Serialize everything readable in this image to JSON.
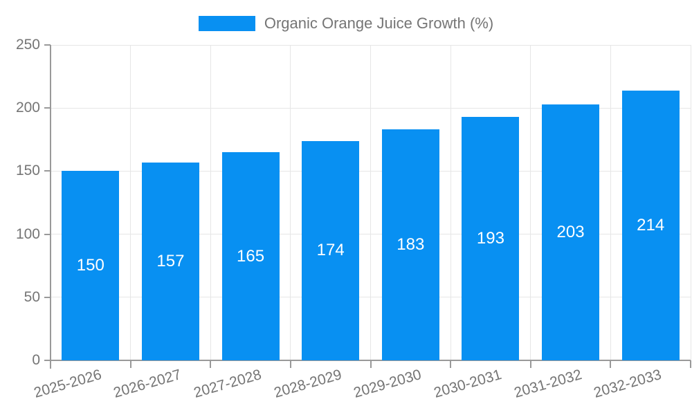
{
  "legend": {
    "label": "Organic Orange Juice Growth (%)"
  },
  "chart_data": {
    "type": "bar",
    "title": "Organic Orange Juice Growth (%)",
    "categories": [
      "2025-2026",
      "2026-2027",
      "2027-2028",
      "2028-2029",
      "2029-2030",
      "2030-2031",
      "2031-2032",
      "2032-2033"
    ],
    "values": [
      150,
      157,
      165,
      174,
      183,
      193,
      203,
      214
    ],
    "xlabel": "",
    "ylabel": "",
    "ylim": [
      0,
      250
    ],
    "yticks": [
      0,
      50,
      100,
      150,
      200,
      250
    ],
    "grid": true,
    "legend_position": "top-center",
    "x_label_rotation_deg": -16,
    "colors": {
      "bar": "#0890F2",
      "value_label": "#FFFFFF",
      "axis": "#999999",
      "grid": "#E6E6E6",
      "tick_label": "#757575"
    }
  }
}
